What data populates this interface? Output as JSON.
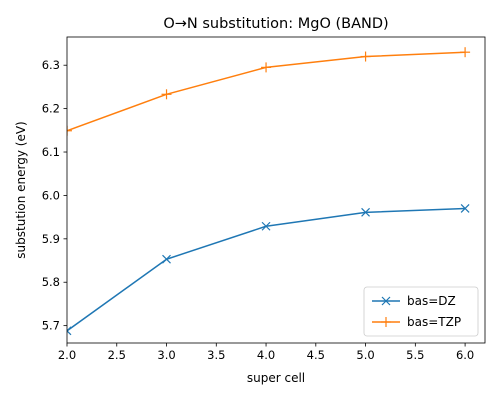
{
  "chart_data": {
    "type": "line",
    "title": "O→N substitution: MgO (BAND)",
    "xlabel": "super cell",
    "ylabel": "substution energy (eV)",
    "x": [
      2,
      3,
      4,
      5,
      6
    ],
    "xlim": [
      2.0,
      6.2
    ],
    "ylim": [
      5.66,
      6.365
    ],
    "xticks": [
      2.0,
      2.5,
      3.0,
      3.5,
      4.0,
      4.5,
      5.0,
      5.5,
      6.0
    ],
    "xtick_labels": [
      "2.0",
      "2.5",
      "3.0",
      "3.5",
      "4.0",
      "4.5",
      "5.0",
      "5.5",
      "6.0"
    ],
    "yticks": [
      5.7,
      5.8,
      5.9,
      6.0,
      6.1,
      6.2,
      6.3
    ],
    "ytick_labels": [
      "5.7",
      "5.8",
      "5.9",
      "6.0",
      "6.1",
      "6.2",
      "6.3"
    ],
    "grid": false,
    "legend_position": "lower right",
    "series": [
      {
        "name": "bas=DZ",
        "values": [
          5.688,
          5.853,
          5.929,
          5.961,
          5.97
        ],
        "color": "#1f77b4",
        "marker": "x"
      },
      {
        "name": "bas=TZP",
        "values": [
          6.149,
          6.233,
          6.295,
          6.32,
          6.33
        ],
        "color": "#ff7f0e",
        "marker": "+"
      }
    ]
  }
}
